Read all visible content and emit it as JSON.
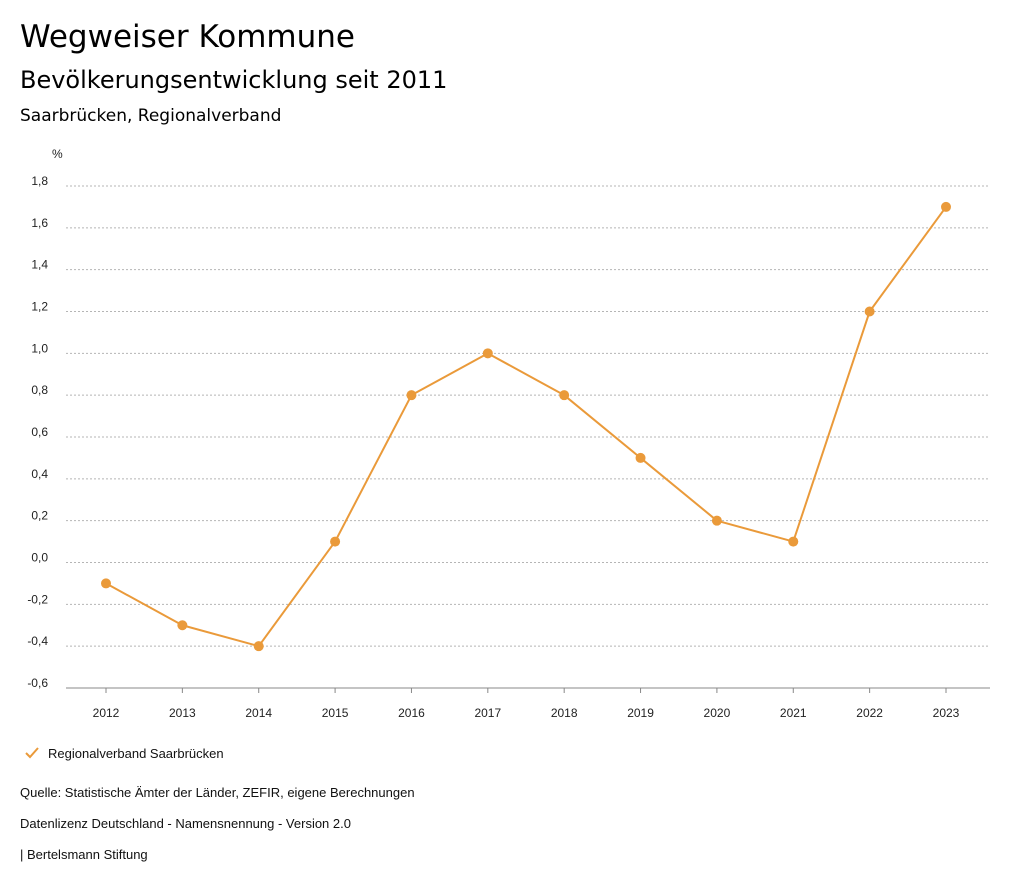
{
  "header": {
    "title": "Wegweiser Kommune",
    "subtitle": "Bevölkerungsentwicklung seit 2011",
    "place": "Saarbrücken, Regionalverband"
  },
  "footer": {
    "source": "Quelle: Statistische Ämter der Länder, ZEFIR, eigene Berechnungen",
    "license": "Datenlizenz Deutschland - Namensnennung - Version 2.0",
    "credit": "| Bertelsmann Stiftung"
  },
  "colors": {
    "series": "#ea9a3a",
    "grid": "#b5b5b5",
    "axis": "#888888"
  },
  "chart_data": {
    "type": "line",
    "unit_label": "%",
    "x": [
      "2012",
      "2013",
      "2014",
      "2015",
      "2016",
      "2017",
      "2018",
      "2019",
      "2020",
      "2021",
      "2022",
      "2023"
    ],
    "series": [
      {
        "name": "Regionalverband Saarbrücken",
        "values": [
          -0.1,
          -0.3,
          -0.4,
          0.1,
          0.8,
          1.0,
          0.8,
          0.5,
          0.2,
          0.1,
          1.2,
          1.7
        ]
      }
    ],
    "ylim": [
      -0.6,
      1.8
    ],
    "yticks": [
      "-0,6",
      "-0,4",
      "-0,2",
      "0,0",
      "0,2",
      "0,4",
      "0,6",
      "0,8",
      "1,0",
      "1,2",
      "1,4",
      "1,6",
      "1,8"
    ],
    "ytick_values": [
      -0.6,
      -0.4,
      -0.2,
      0.0,
      0.2,
      0.4,
      0.6,
      0.8,
      1.0,
      1.2,
      1.4,
      1.6,
      1.8
    ],
    "grid": true,
    "legend_position": "bottom-left"
  }
}
